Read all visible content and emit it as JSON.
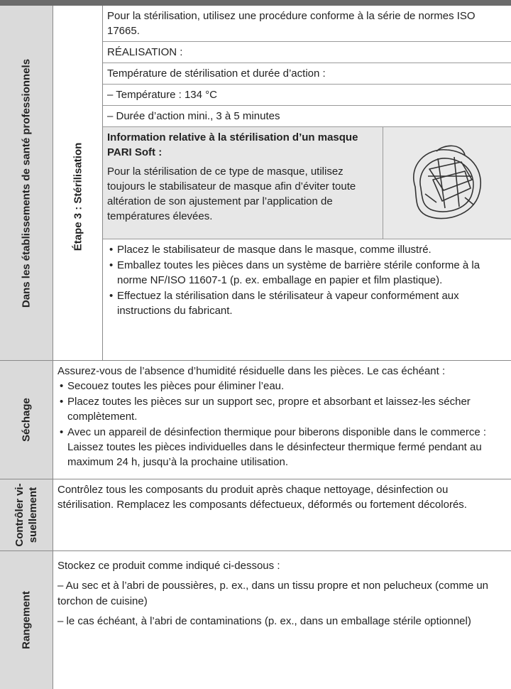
{
  "sterilization": {
    "label": "Dans les établissements de santé professionnels",
    "step": "Étape 3 : Stérilisation",
    "intro": [
      "Pour la stérilisation, utilisez une procédure conforme à la série de normes ISO 17665.",
      "RÉALISATION :",
      "Température de stérilisation et durée d’action :",
      "– Température : 134 °C",
      "– Durée d’action mini., 3 à 5 minutes"
    ],
    "info_title": "Information relative à la stérilisation d’un masque PARI Soft :",
    "info_text": "Pour la stérilisation de ce type de masque, utilisez toujours le stabilisateur de masque afin d’éviter toute altération de son ajustement par l’application de températures élevées.",
    "bullets": [
      "Placez le stabilisateur de masque dans le masque, comme illustré.",
      "Emballez toutes les pièces dans un système de barrière stérile conforme à la norme NF/ISO 11607-1 (p. ex. emballage en papier et film plastique).",
      "Effectuez la stérilisation dans le stérilisateur à vapeur conformément aux instructions du fabricant."
    ]
  },
  "drying": {
    "label": "Séchage",
    "intro": "Assurez-vous de l’absence d’humidité résiduelle dans les pièces. Le cas échéant :",
    "bullets": [
      "Secouez toutes les pièces pour éliminer l’eau.",
      "Placez toutes les pièces sur un support sec, propre et absorbant et laissez-les sécher complètement.",
      "Avec un appareil de désinfection thermique pour biberons disponible dans le commerce : Laissez toutes les pièces individuelles dans le désinfecteur thermique fermé pendant au maximum 24 h, jusqu’à la prochaine utilisation."
    ]
  },
  "inspection": {
    "label": [
      "Contrôler vi-",
      "suellement"
    ],
    "text": "Contrôlez tous les composants du produit après chaque nettoyage, désinfection ou stérilisation. Remplacez les composants défectueux, déformés ou fortement décolorés."
  },
  "storage": {
    "label": "Rangement",
    "intro": "Stockez ce produit comme indiqué ci-dessous :",
    "items": [
      "– Au sec et à l’abri de poussières, p. ex., dans un tissu propre et non pelucheux (comme un torchon de cuisine)",
      "– le cas échéant, à l’abri de contaminations (p. ex., dans un emballage stérile optionnel)"
    ]
  }
}
